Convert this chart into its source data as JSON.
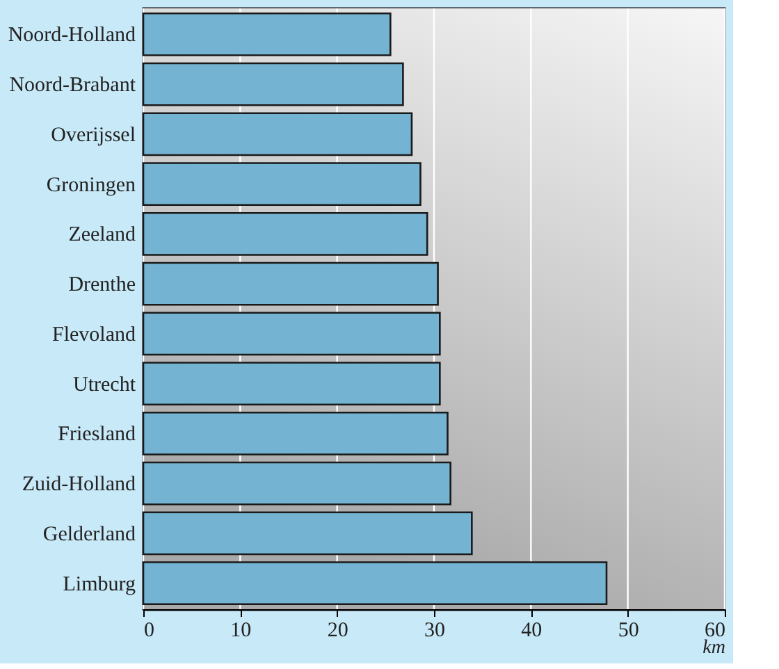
{
  "chart_data": {
    "type": "bar",
    "orientation": "horizontal",
    "xlabel": "km",
    "categories": [
      "Noord-Holland",
      "Noord-Brabant",
      "Overijssel",
      "Groningen",
      "Zeeland",
      "Drenthe",
      "Flevoland",
      "Utrecht",
      "Friesland",
      "Zuid-Holland",
      "Gelderland",
      "Limburg"
    ],
    "values": [
      25.5,
      26.8,
      27.7,
      28.6,
      29.3,
      30.4,
      30.6,
      30.6,
      31.4,
      31.7,
      33.9,
      47.8
    ],
    "color": "#74b3d1",
    "xlim": [
      0,
      60
    ],
    "xticks": [
      0,
      10,
      20,
      30,
      40,
      50,
      60
    ],
    "grid": "x"
  }
}
